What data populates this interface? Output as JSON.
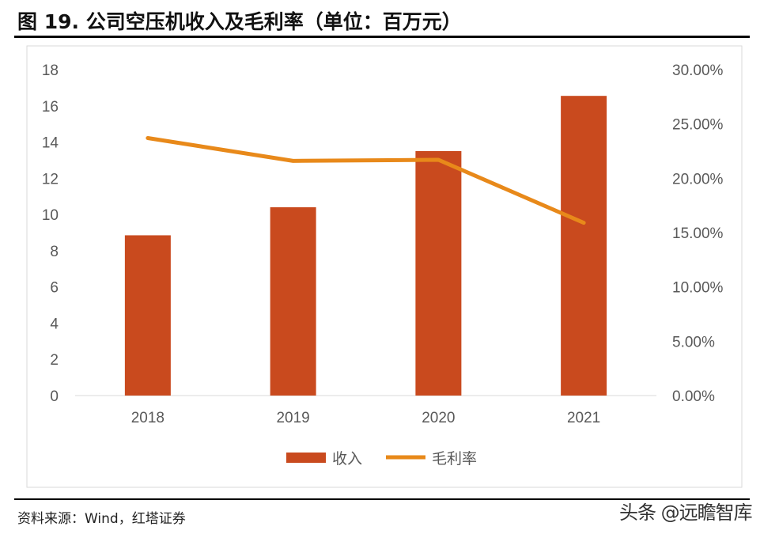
{
  "title": "图 19. 公司空压机收入及毛利率（单位：百万元）",
  "source": "资料来源：Wind，红塔证券",
  "watermark": "头条 @远瞻智库",
  "chart_data": {
    "type": "bar+line",
    "categories": [
      "2018",
      "2019",
      "2020",
      "2021"
    ],
    "series": [
      {
        "name": "收入",
        "type": "bar",
        "axis": "left",
        "color": "#C94A1E",
        "values": [
          8.85,
          10.4,
          13.5,
          16.55
        ]
      },
      {
        "name": "毛利率",
        "type": "line",
        "axis": "right",
        "color": "#E8891A",
        "values": [
          23.7,
          21.6,
          21.7,
          15.9
        ]
      }
    ],
    "left_axis": {
      "ylim": [
        0,
        18
      ],
      "ticks": [
        "0",
        "2",
        "4",
        "6",
        "8",
        "10",
        "12",
        "14",
        "16",
        "18"
      ]
    },
    "right_axis": {
      "ylim": [
        0,
        30
      ],
      "unit": "%",
      "ticks": [
        "0.00%",
        "5.00%",
        "10.00%",
        "15.00%",
        "20.00%",
        "25.00%",
        "30.00%"
      ]
    },
    "grid": false,
    "legend": "bottom"
  }
}
